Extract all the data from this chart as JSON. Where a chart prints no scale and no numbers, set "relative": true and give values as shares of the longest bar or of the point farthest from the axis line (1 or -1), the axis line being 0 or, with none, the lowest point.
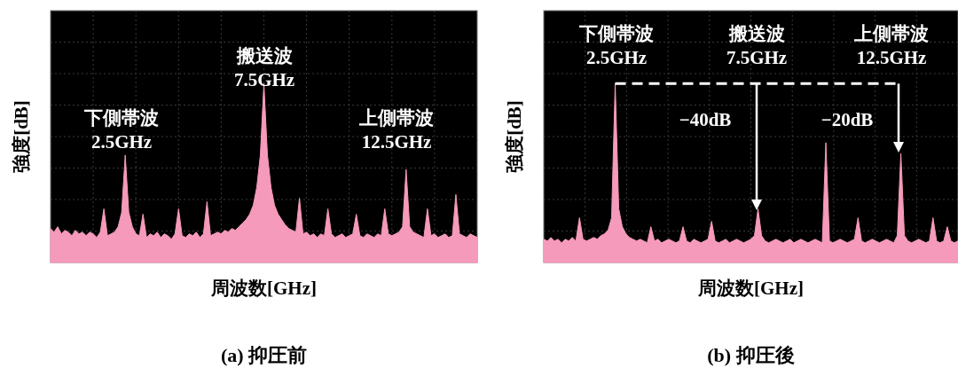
{
  "chart_data": [
    {
      "type": "area",
      "relative": true,
      "title": "(a)  抑圧前",
      "xlabel": "周波数[GHz]",
      "ylabel": "強度[dB]",
      "color": "#f59abb",
      "grid": true,
      "annotations": [
        "搬送波\n7.5GHz",
        "下側帯波\n2.5GHz",
        "上側帯波\n12.5GHz"
      ],
      "categories": [
        null,
        null,
        null,
        null,
        null,
        null,
        null,
        null,
        null,
        null,
        null,
        null,
        null,
        null,
        null,
        null,
        null,
        null,
        null,
        null,
        null,
        null,
        null,
        null,
        null,
        null,
        null,
        null,
        null,
        null,
        null,
        null,
        null,
        null,
        null,
        null,
        null,
        null,
        null,
        null,
        null,
        null,
        null,
        null,
        null,
        null,
        null,
        null,
        null,
        null,
        null,
        null,
        null,
        null,
        null,
        null,
        null,
        null,
        null,
        null,
        null,
        null,
        null,
        null,
        null,
        null,
        null,
        null,
        null,
        null,
        null,
        null,
        null,
        null,
        null,
        null,
        null,
        null,
        null,
        null,
        null,
        null,
        null,
        null,
        null,
        null,
        null,
        null,
        null,
        null,
        null,
        null,
        null,
        null,
        null,
        null,
        null,
        null,
        null,
        null,
        null,
        null,
        null,
        null,
        null,
        null,
        null,
        null,
        null,
        null,
        null,
        null,
        null,
        null,
        null,
        null,
        null,
        null,
        null,
        null,
        null
      ],
      "values": [
        0.19,
        0.17,
        0.2,
        0.16,
        0.18,
        0.17,
        0.15,
        0.18,
        0.16,
        0.17,
        0.15,
        0.17,
        0.16,
        0.14,
        0.17,
        0.3,
        0.15,
        0.16,
        0.17,
        0.2,
        0.28,
        0.6,
        0.28,
        0.2,
        0.16,
        0.15,
        0.27,
        0.14,
        0.16,
        0.15,
        0.17,
        0.14,
        0.16,
        0.15,
        0.13,
        0.16,
        0.3,
        0.15,
        0.14,
        0.16,
        0.15,
        0.17,
        0.14,
        0.16,
        0.34,
        0.15,
        0.16,
        0.17,
        0.16,
        0.18,
        0.17,
        0.19,
        0.18,
        0.2,
        0.22,
        0.24,
        0.27,
        0.32,
        0.42,
        0.6,
        1,
        0.6,
        0.42,
        0.32,
        0.27,
        0.24,
        0.21,
        0.19,
        0.18,
        0.17,
        0.36,
        0.16,
        0.17,
        0.15,
        0.16,
        0.14,
        0.16,
        0.15,
        0.3,
        0.16,
        0.14,
        0.15,
        0.16,
        0.14,
        0.15,
        0.16,
        0.27,
        0.15,
        0.14,
        0.16,
        0.15,
        0.14,
        0.16,
        0.15,
        0.3,
        0.16,
        0.15,
        0.16,
        0.17,
        0.2,
        0.52,
        0.2,
        0.17,
        0.16,
        0.15,
        0.14,
        0.3,
        0.15,
        0.16,
        0.14,
        0.15,
        0.16,
        0.14,
        0.15,
        0.38,
        0.16,
        0.15,
        0.14,
        0.16,
        0.15,
        0.14
      ]
    },
    {
      "type": "area",
      "relative": true,
      "title": "(b)  抑圧後",
      "xlabel": "周波数[GHz]",
      "ylabel": "強度[dB]",
      "color": "#f59abb",
      "grid": true,
      "annotations": [
        "下側帯波\n2.5GHz",
        "搬送波\n7.5GHz",
        "上側帯波\n12.5GHz",
        "−40dB",
        "−20dB"
      ],
      "ref_lines": [
        {
          "axis": "y",
          "value": 1,
          "color": "#ffffff",
          "line_style": "dashed"
        }
      ],
      "categories": [
        null,
        null,
        null,
        null,
        null,
        null,
        null,
        null,
        null,
        null,
        null,
        null,
        null,
        null,
        null,
        null,
        null,
        null,
        null,
        null,
        null,
        null,
        null,
        null,
        null,
        null,
        null,
        null,
        null,
        null,
        null,
        null,
        null,
        null,
        null,
        null,
        null,
        null,
        null,
        null,
        null,
        null,
        null,
        null,
        null,
        null,
        null,
        null,
        null,
        null,
        null,
        null,
        null,
        null,
        null,
        null,
        null,
        null,
        null,
        null,
        null,
        null,
        null,
        null,
        null,
        null,
        null,
        null,
        null,
        null,
        null,
        null,
        null,
        null,
        null,
        null,
        null,
        null,
        null,
        null,
        null,
        null,
        null,
        null,
        null,
        null,
        null,
        null,
        null,
        null,
        null,
        null,
        null,
        null,
        null,
        null,
        null,
        null,
        null,
        null,
        null,
        null,
        null,
        null,
        null,
        null,
        null,
        null,
        null,
        null,
        null,
        null,
        null,
        null,
        null,
        null,
        null
      ],
      "values": [
        0.13,
        0.12,
        0.14,
        0.12,
        0.13,
        0.11,
        0.13,
        0.12,
        0.14,
        0.12,
        0.25,
        0.13,
        0.12,
        0.13,
        0.14,
        0.13,
        0.15,
        0.16,
        0.18,
        0.25,
        1,
        0.3,
        0.2,
        0.16,
        0.14,
        0.13,
        0.12,
        0.13,
        0.12,
        0.11,
        0.2,
        0.12,
        0.13,
        0.11,
        0.12,
        0.13,
        0.12,
        0.11,
        0.12,
        0.2,
        0.12,
        0.11,
        0.13,
        0.12,
        0.11,
        0.12,
        0.13,
        0.23,
        0.12,
        0.11,
        0.12,
        0.13,
        0.11,
        0.12,
        0.13,
        0.12,
        0.11,
        0.12,
        0.13,
        0.15,
        0.3,
        0.15,
        0.12,
        0.11,
        0.12,
        0.13,
        0.12,
        0.11,
        0.12,
        0.13,
        0.11,
        0.12,
        0.13,
        0.12,
        0.11,
        0.12,
        0.13,
        0.12,
        0.11,
        0.67,
        0.12,
        0.11,
        0.12,
        0.13,
        0.12,
        0.11,
        0.12,
        0.13,
        0.25,
        0.12,
        0.11,
        0.12,
        0.13,
        0.12,
        0.11,
        0.12,
        0.13,
        0.12,
        0.11,
        0.15,
        0.61,
        0.15,
        0.12,
        0.11,
        0.12,
        0.13,
        0.12,
        0.11,
        0.12,
        0.25,
        0.12,
        0.11,
        0.12,
        0.2,
        0.12,
        0.11,
        0.12
      ]
    }
  ]
}
